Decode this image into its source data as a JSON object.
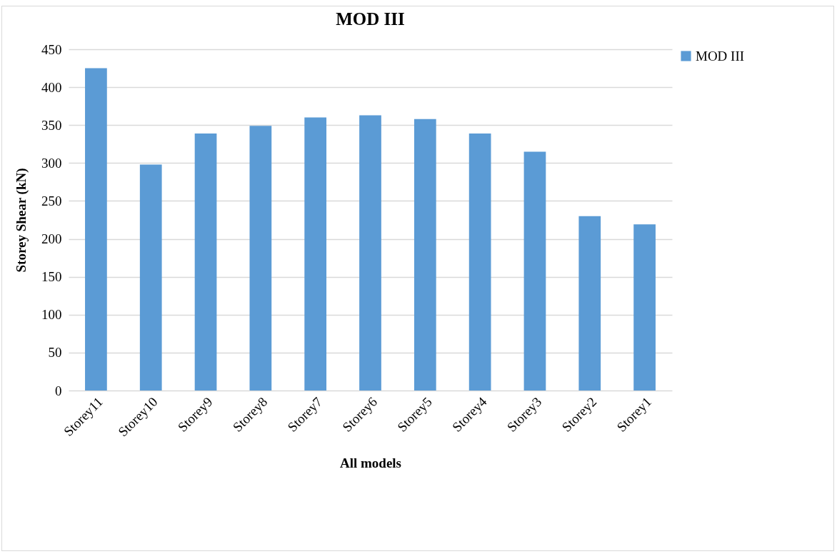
{
  "chart_data": {
    "type": "bar",
    "title": "MOD III",
    "xlabel": "All models",
    "ylabel": "Storey Shear (kN)",
    "categories": [
      "Storey11",
      "Storey10",
      "Storey9",
      "Storey8",
      "Storey7",
      "Storey6",
      "Storey5",
      "Storey4",
      "Storey3",
      "Storey2",
      "Storey1"
    ],
    "series": [
      {
        "name": "MOD III",
        "color": "#5b9bd5",
        "values": [
          425,
          298,
          339,
          349,
          360,
          363,
          358,
          339,
          315,
          230,
          219
        ]
      }
    ],
    "ylim": [
      0,
      450
    ],
    "yticks": [
      0,
      50,
      100,
      150,
      200,
      250,
      300,
      350,
      400,
      450
    ],
    "grid": "y",
    "legend": "right"
  }
}
